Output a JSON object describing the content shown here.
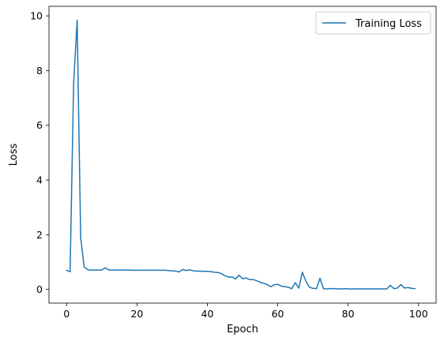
{
  "chart_data": {
    "type": "line",
    "title": "",
    "xlabel": "Epoch",
    "ylabel": "Loss",
    "xlim": [
      -5,
      105
    ],
    "ylim": [
      -0.5,
      10.35
    ],
    "xticks": [
      0,
      20,
      40,
      60,
      80,
      100
    ],
    "yticks": [
      0,
      2,
      4,
      6,
      8,
      10
    ],
    "grid": false,
    "legend_position": "top-right",
    "series": [
      {
        "name": "Training Loss",
        "color": "#1f77b4",
        "x": [
          0,
          1,
          2,
          3,
          4,
          5,
          6,
          7,
          8,
          9,
          10,
          11,
          12,
          13,
          14,
          15,
          16,
          17,
          18,
          19,
          20,
          21,
          22,
          23,
          24,
          25,
          26,
          27,
          28,
          29,
          30,
          31,
          32,
          33,
          34,
          35,
          36,
          37,
          38,
          39,
          40,
          41,
          42,
          43,
          44,
          45,
          46,
          47,
          48,
          49,
          50,
          51,
          52,
          53,
          54,
          55,
          56,
          57,
          58,
          59,
          60,
          61,
          62,
          63,
          64,
          65,
          66,
          67,
          68,
          69,
          70,
          71,
          72,
          73,
          74,
          75,
          76,
          77,
          78,
          79,
          80,
          81,
          82,
          83,
          84,
          85,
          86,
          87,
          88,
          89,
          90,
          91,
          92,
          93,
          94,
          95,
          96,
          97,
          98,
          99
        ],
        "y": [
          0.7,
          0.65,
          7.5,
          9.85,
          1.9,
          0.82,
          0.72,
          0.71,
          0.71,
          0.71,
          0.71,
          0.79,
          0.71,
          0.71,
          0.71,
          0.71,
          0.71,
          0.71,
          0.71,
          0.7,
          0.7,
          0.7,
          0.7,
          0.7,
          0.7,
          0.7,
          0.7,
          0.7,
          0.7,
          0.69,
          0.68,
          0.67,
          0.64,
          0.73,
          0.69,
          0.72,
          0.68,
          0.67,
          0.67,
          0.66,
          0.66,
          0.65,
          0.63,
          0.62,
          0.58,
          0.5,
          0.45,
          0.46,
          0.38,
          0.52,
          0.39,
          0.42,
          0.36,
          0.36,
          0.32,
          0.26,
          0.23,
          0.18,
          0.1,
          0.17,
          0.19,
          0.12,
          0.1,
          0.08,
          0.03,
          0.25,
          0.05,
          0.63,
          0.3,
          0.08,
          0.04,
          0.03,
          0.41,
          0.03,
          0.02,
          0.03,
          0.03,
          0.02,
          0.02,
          0.03,
          0.02,
          0.02,
          0.02,
          0.02,
          0.02,
          0.02,
          0.02,
          0.02,
          0.02,
          0.02,
          0.02,
          0.02,
          0.15,
          0.03,
          0.05,
          0.18,
          0.05,
          0.07,
          0.04,
          0.03
        ]
      }
    ]
  }
}
